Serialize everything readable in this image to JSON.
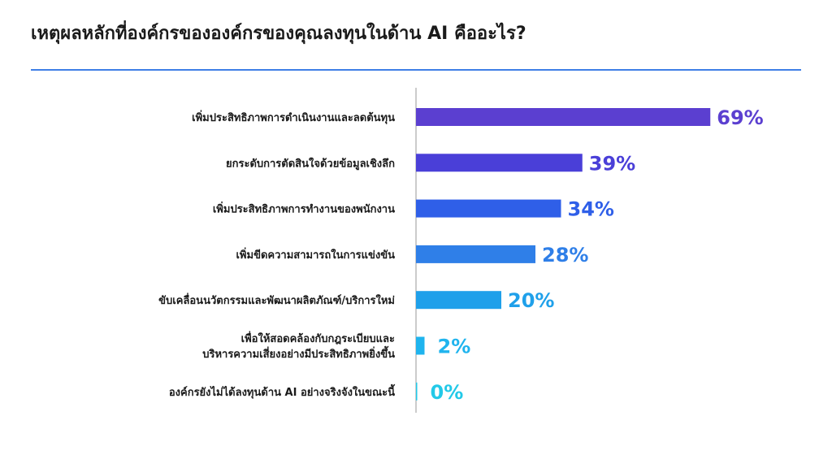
{
  "header": {
    "title": "เหตุผลหลักที่องค์กรขององค์กรของคุณลงทุนในด้าน AI คืออะไร?"
  },
  "colors": {
    "title_rule": "#3f7fe6",
    "axis": "#9a9a9a"
  },
  "chart_data": {
    "type": "bar",
    "orientation": "horizontal",
    "title": "เหตุผลหลักที่องค์กรขององค์กรของคุณลงทุนในด้าน AI คืออะไร?",
    "xlabel": "",
    "ylabel": "",
    "xlim": [
      0,
      100
    ],
    "grid": false,
    "legend": "none",
    "unit": "%",
    "categories": [
      [
        "เพิ่มประสิทธิภาพการดำเนินงานและลดต้นทุน"
      ],
      [
        "ยกระดับการตัดสินใจด้วยข้อมูลเชิงลึก"
      ],
      [
        "เพิ่มประสิทธิภาพการทำงานของพนักงาน"
      ],
      [
        "เพิ่มขีดความสามารถในการแข่งขัน"
      ],
      [
        "ขับเคลื่อนนวัตกรรมและพัฒนาผลิตภัณฑ์/บริการใหม่"
      ],
      [
        "เพื่อให้สอดคล้องกับกฎระเบียบและ",
        "บริหารความเสี่ยงอย่างมีประสิทธิภาพยิ่งขึ้น"
      ],
      [
        "องค์กรยังไม่ได้ลงทุนด้าน AI อย่างจริงจังในขณะนี้"
      ]
    ],
    "values": [
      69,
      39,
      34,
      28,
      20,
      2,
      0
    ],
    "value_labels": [
      "69%",
      "39%",
      "34%",
      "28%",
      "20%",
      "2%",
      "0%"
    ],
    "colors": [
      "#5b3fd0",
      "#4a3fd8",
      "#2f5fe8",
      "#2f7fe8",
      "#1fa0ea",
      "#1fb4ee",
      "#22c9e8"
    ]
  }
}
